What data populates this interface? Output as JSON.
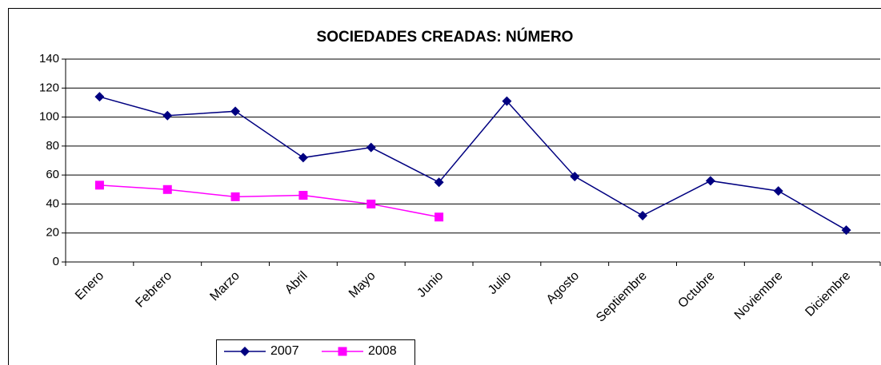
{
  "chart_data": {
    "type": "line",
    "title": "SOCIEDADES CREADAS: NÚMERO",
    "categories": [
      "Enero",
      "Febrero",
      "Marzo",
      "Abril",
      "Mayo",
      "Junio",
      "Julio",
      "Agosto",
      "Septiembre",
      "Octubre",
      "Noviembre",
      "Diciembre"
    ],
    "series": [
      {
        "name": "2007",
        "color": "#000080",
        "marker": "diamond",
        "values": [
          114,
          101,
          104,
          72,
          79,
          55,
          111,
          59,
          32,
          56,
          49,
          22
        ]
      },
      {
        "name": "2008",
        "color": "#ff00ff",
        "marker": "square",
        "values": [
          53,
          50,
          45,
          46,
          40,
          31,
          null,
          null,
          null,
          null,
          null,
          null
        ]
      }
    ],
    "ylim": [
      0,
      140
    ],
    "yticks": [
      0,
      20,
      40,
      60,
      80,
      100,
      120,
      140
    ],
    "grid": true,
    "legend": "bottom"
  }
}
